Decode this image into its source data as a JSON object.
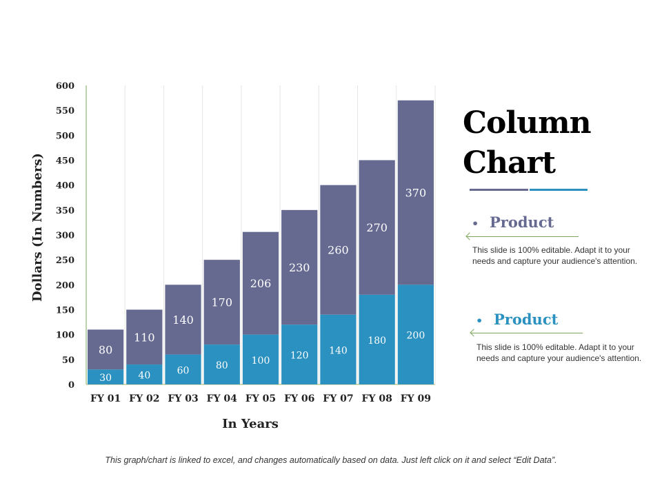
{
  "chart_data": {
    "type": "bar",
    "stacked": true,
    "title": "",
    "xlabel": "In Years",
    "ylabel": "Dollars (In Numbers)",
    "categories": [
      "FY 01",
      "FY 02",
      "FY 03",
      "FY 04",
      "FY 05",
      "FY 06",
      "FY 07",
      "FY 08",
      "FY 09"
    ],
    "series": [
      {
        "values": [
          30,
          40,
          60,
          80,
          100,
          120,
          140,
          180,
          200
        ],
        "color": "#2a91c0"
      },
      {
        "values": [
          80,
          110,
          140,
          170,
          206,
          230,
          260,
          270,
          370
        ],
        "color": "#666a91"
      }
    ],
    "ylim": [
      0,
      600
    ],
    "yticks": [
      "0",
      "50",
      "100",
      "150",
      "200",
      "250",
      "300",
      "350",
      "400",
      "450",
      "500",
      "550",
      "600"
    ],
    "grid": "vertical separators",
    "legend": "none",
    "data_labels": true
  },
  "side": {
    "title_line1": "Column",
    "title_line2": "Chart",
    "accent_purple": "#666a91",
    "accent_blue": "#2a91c0",
    "items": [
      {
        "label": "Product",
        "bullet": "•",
        "text": "This slide is 100% editable. Adapt it to your needs and capture your audience's attention."
      },
      {
        "label": "Product",
        "bullet": "•",
        "text": "This slide is 100% editable. Adapt it to your needs and capture your audience's attention."
      }
    ]
  },
  "footer": "This graph/chart is linked to excel, and changes automatically based on data.  Just left click on it and select “Edit Data”."
}
